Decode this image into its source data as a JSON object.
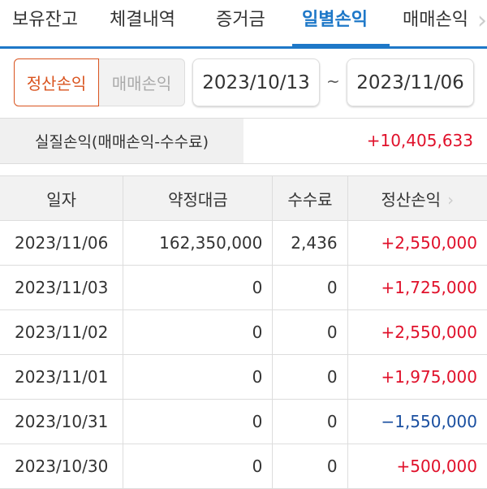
{
  "tabs": [
    "보유잔고",
    "체결내역",
    "증거금",
    "일별손익",
    "매매손익"
  ],
  "active_tab": "일별손익",
  "toggle": {
    "options": [
      "정산손익",
      "매매손익"
    ],
    "selected": "정산손익"
  },
  "date_range": {
    "from": "2023/10/13",
    "separator": "~",
    "to": "2023/11/06"
  },
  "summary": {
    "label": "실질손익(매매손익-수수료)",
    "value": "+10,405,633"
  },
  "table": {
    "headers": [
      "일자",
      "약정대금",
      "수수료",
      "정산손익"
    ],
    "rows": [
      {
        "date": "2023/11/06",
        "amount": "162,350,000",
        "fee": "2,436",
        "pnl": "+2,550,000"
      },
      {
        "date": "2023/11/03",
        "amount": "0",
        "fee": "0",
        "pnl": "+1,725,000"
      },
      {
        "date": "2023/11/02",
        "amount": "0",
        "fee": "0",
        "pnl": "+2,550,000"
      },
      {
        "date": "2023/11/01",
        "amount": "0",
        "fee": "0",
        "pnl": "+1,975,000"
      },
      {
        "date": "2023/10/31",
        "amount": "0",
        "fee": "0",
        "pnl": "−1,550,000"
      },
      {
        "date": "2023/10/30",
        "amount": "0",
        "fee": "0",
        "pnl": "+500,000"
      }
    ]
  },
  "colors": {
    "accent": "#1e78c8",
    "positive": "#e0102a",
    "negative": "#1a4fa0",
    "toggle_active": "#d9531e"
  },
  "icons": {
    "tab_scroll": "chevron-right-icon",
    "column_scroll": "chevron-right-icon"
  }
}
